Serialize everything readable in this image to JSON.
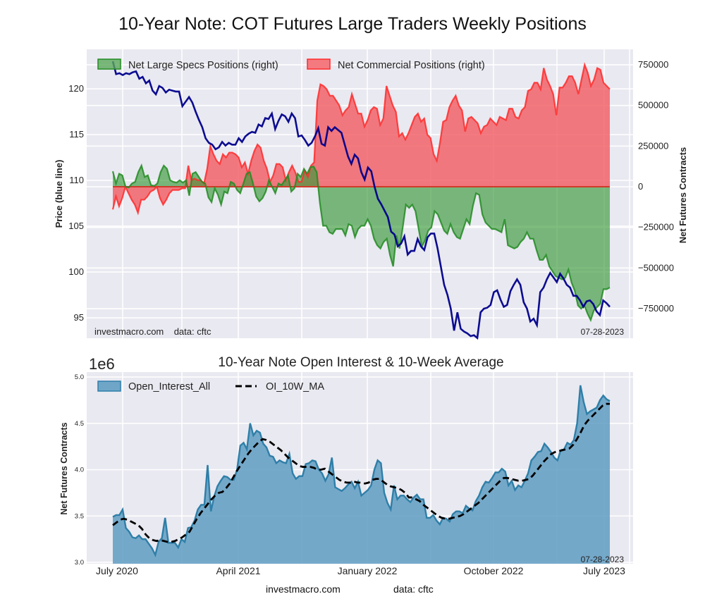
{
  "title": "10-Year Note: COT Futures Large Traders Weekly Positions",
  "footer": {
    "site": "investmacro.com",
    "source": "data: cftc"
  },
  "chart_data": [
    {
      "type": "area",
      "title": "10-Year Note: COT Futures Large Traders Weekly Positions",
      "ylabel_left": "Price (blue line)",
      "ylabel_right": "Net Futures Contracts",
      "yticks_left": [
        "95",
        "100",
        "105",
        "110",
        "115",
        "120"
      ],
      "ylim_left": [
        93,
        123.5
      ],
      "yticks_right": [
        "−750000",
        "−500000",
        "−250000",
        "0",
        "250000",
        "500000",
        "750000"
      ],
      "ylim_right": [
        -930000,
        780000
      ],
      "annotation_left": "investmacro.com    data: cftc",
      "annotation_right": "07-28-2023",
      "legend": [
        "Net Large Specs Positions (right)",
        "Net Commercial Positions (right)"
      ],
      "legend_position": "top-left",
      "grid": true,
      "x_start": "2020-06-09",
      "x_end": "2023-07-25",
      "colors": {
        "specs": "#228b22",
        "specs_fill": "#3a9a3a",
        "commercial": "#ff2a2a",
        "commercial_fill": "#f15a60",
        "price": "#00008b"
      },
      "series": [
        {
          "name": "Price",
          "axis": "left",
          "values": [
            123,
            121.6,
            121.7,
            121.5,
            121.7,
            121.6,
            121.8,
            121.9,
            121.1,
            121.3,
            120.6,
            120.9,
            119.8,
            119.4,
            120.3,
            120.1,
            119.6,
            119.9,
            119.8,
            119.7,
            119.7,
            118.1,
            118.6,
            119.1,
            118.5,
            117.5,
            116.6,
            115.8,
            114.6,
            114.1,
            113.9,
            113.4,
            113.6,
            114.2,
            113.8,
            114.1,
            113.9,
            113.9,
            114.6,
            114.2,
            114.8,
            115.1,
            115.3,
            115.2,
            116.1,
            115.9,
            116.8,
            116.7,
            117.3,
            115.6,
            116.5,
            117.2,
            117.0,
            116.4,
            117.3,
            116.8,
            114.8,
            114.9,
            114.4,
            113.8,
            114.1,
            114.8,
            115.7,
            114.0,
            113.8,
            115.8,
            115.4,
            115.8,
            115.5,
            115.2,
            113.9,
            112.6,
            111.8,
            112.8,
            112.4,
            110.9,
            110.1,
            111.4,
            111.0,
            109.3,
            108.0,
            107.4,
            106.7,
            106.0,
            104.4,
            104.1,
            102.8,
            103.1,
            103.9,
            101.9,
            102.3,
            102.3,
            103.6,
            102.8,
            102.4,
            103.8,
            104.2,
            104.2,
            102.6,
            100.6,
            98.6,
            97.5,
            96.0,
            93.6,
            95.6,
            93.8,
            93.5,
            93.3,
            93.0,
            93.1,
            92.8,
            95.6,
            96.0,
            96.1,
            96.4,
            97.8,
            98.0,
            97.0,
            96.2,
            96.4,
            97.9,
            98.6,
            99.2,
            98.6,
            96.7,
            96.0,
            94.6,
            94.9,
            94.2,
            97.8,
            98.3,
            99.2,
            99.9,
            99.4,
            98.9,
            99.8,
            99.3,
            98.6,
            98.3,
            97.4,
            97.4,
            96.9,
            96.2,
            96.8,
            96.9,
            96.5,
            95.7,
            95.3,
            96.9,
            96.6,
            96.2
          ]
        },
        {
          "name": "Net Large Specs Positions (right)",
          "axis": "right",
          "values": [
            95000,
            20000,
            80000,
            70000,
            0,
            -5000,
            20000,
            30000,
            90000,
            130000,
            60000,
            70000,
            10000,
            5000,
            20000,
            90000,
            130000,
            110000,
            40000,
            30000,
            25000,
            40000,
            25000,
            40000,
            -55000,
            80000,
            90000,
            60000,
            30000,
            20000,
            -65000,
            -95000,
            -10000,
            -50000,
            -110000,
            -30000,
            -40000,
            30000,
            20000,
            -20000,
            -40000,
            20000,
            80000,
            90000,
            20000,
            -60000,
            -90000,
            -70000,
            -30000,
            40000,
            0,
            -40000,
            20000,
            10000,
            40000,
            70000,
            -30000,
            -10000,
            80000,
            60000,
            110000,
            80000,
            120000,
            125000,
            90000,
            -100000,
            -240000,
            -240000,
            -280000,
            -290000,
            -260000,
            -260000,
            -260000,
            -300000,
            -230000,
            -240000,
            -310000,
            -260000,
            -240000,
            -240000,
            -200000,
            -240000,
            -320000,
            -360000,
            -380000,
            -340000,
            -320000,
            -420000,
            -490000,
            -300000,
            -380000,
            -250000,
            -110000,
            -130000,
            -110000,
            -150000,
            -260000,
            -370000,
            -330000,
            -270000,
            -250000,
            -150000,
            -170000,
            -220000,
            -270000,
            -290000,
            -230000,
            -280000,
            -310000,
            -320000,
            -260000,
            -200000,
            -230000,
            -120000,
            -40000,
            -50000,
            -170000,
            -220000,
            -240000,
            -260000,
            -260000,
            -270000,
            -280000,
            -200000,
            -360000,
            -370000,
            -380000,
            -370000,
            -340000,
            -320000,
            -280000,
            -320000,
            -320000,
            -390000,
            -450000,
            -450000,
            -420000,
            -490000,
            -520000,
            -550000,
            -560000,
            -570000,
            -560000,
            -510000,
            -590000,
            -640000,
            -730000,
            -750000,
            -730000,
            -780000,
            -820000,
            -760000,
            -740000,
            -720000,
            -630000,
            -630000,
            -620000
          ]
        },
        {
          "name": "Net Commercial Positions (right)",
          "axis": "right",
          "values": [
            -140000,
            -60000,
            -120000,
            -70000,
            0,
            -40000,
            -80000,
            -110000,
            -160000,
            -80000,
            -80000,
            -60000,
            -30000,
            -20000,
            0,
            -70000,
            -110000,
            -80000,
            -40000,
            -20000,
            -20000,
            -20000,
            -10000,
            -10000,
            130000,
            40000,
            50000,
            40000,
            40000,
            20000,
            110000,
            250000,
            200000,
            160000,
            140000,
            200000,
            180000,
            210000,
            210000,
            200000,
            180000,
            120000,
            150000,
            80000,
            160000,
            220000,
            260000,
            240000,
            160000,
            110000,
            30000,
            70000,
            140000,
            140000,
            120000,
            40000,
            90000,
            130000,
            90000,
            30000,
            30000,
            100000,
            60000,
            130000,
            150000,
            530000,
            630000,
            620000,
            600000,
            560000,
            560000,
            530000,
            500000,
            440000,
            470000,
            490000,
            570000,
            510000,
            450000,
            450000,
            370000,
            410000,
            470000,
            490000,
            480000,
            380000,
            420000,
            620000,
            560000,
            500000,
            460000,
            310000,
            330000,
            290000,
            330000,
            380000,
            430000,
            450000,
            400000,
            420000,
            320000,
            300000,
            200000,
            160000,
            270000,
            400000,
            410000,
            490000,
            530000,
            560000,
            500000,
            470000,
            340000,
            420000,
            430000,
            410000,
            390000,
            330000,
            370000,
            380000,
            420000,
            400000,
            380000,
            430000,
            420000,
            410000,
            480000,
            480000,
            430000,
            420000,
            470000,
            490000,
            590000,
            600000,
            640000,
            640000,
            600000,
            730000,
            660000,
            620000,
            570000,
            440000,
            610000,
            610000,
            640000,
            680000,
            680000,
            640000,
            570000,
            660000,
            750000,
            700000,
            620000,
            660000,
            730000,
            720000,
            640000,
            620000,
            600000
          ]
        }
      ]
    },
    {
      "type": "area",
      "title": "10-Year Note Open Interest & 10-Week Average",
      "ylabel": "Net Futures Contracts",
      "offset_label": "1e6",
      "yticks": [
        "3.0",
        "3.5",
        "4.0",
        "4.5",
        "5.0"
      ],
      "ylim": [
        3.0,
        5.05
      ],
      "xticks": [
        "July 2020",
        "April 2021",
        "January 2022",
        "October 2022",
        "July 2023"
      ],
      "annotation_right": "07-28-2023",
      "legend": [
        "Open_Interest_All",
        "OI_10W_MA"
      ],
      "legend_position": "top-left",
      "grid": true,
      "colors": {
        "oi": "#2e7fa8",
        "oi_fill": "#5f9cc2",
        "ma": "#000000"
      },
      "series": [
        {
          "name": "Open_Interest_All",
          "values": [
            3.49,
            3.51,
            3.51,
            3.57,
            3.37,
            3.33,
            3.27,
            3.26,
            3.29,
            3.25,
            3.25,
            3.2,
            3.15,
            3.08,
            3.22,
            3.26,
            3.48,
            3.21,
            3.21,
            3.21,
            3.16,
            3.25,
            3.22,
            3.37,
            3.38,
            3.45,
            3.57,
            3.62,
            3.62,
            4.05,
            3.55,
            3.71,
            3.82,
            3.88,
            3.93,
            3.92,
            3.89,
            3.89,
            4.0,
            4.26,
            4.29,
            4.22,
            4.5,
            4.37,
            4.42,
            4.4,
            4.28,
            4.24,
            4.15,
            4.14,
            4.07,
            4.1,
            4.08,
            4.07,
            4.17,
            3.96,
            3.9,
            3.93,
            3.93,
            4.06,
            4.07,
            4.1,
            4.09,
            4.0,
            3.96,
            3.88,
            3.95,
            4.13,
            3.81,
            3.79,
            3.77,
            3.8,
            3.84,
            3.87,
            3.8,
            3.87,
            3.72,
            3.75,
            3.78,
            3.83,
            4.0,
            4.1,
            4.07,
            3.75,
            3.64,
            3.57,
            3.83,
            3.68,
            3.72,
            3.72,
            3.68,
            3.65,
            3.7,
            3.73,
            3.68,
            3.68,
            3.48,
            3.48,
            3.51,
            3.45,
            3.41,
            3.48,
            3.47,
            3.44,
            3.52,
            3.55,
            3.55,
            3.53,
            3.61,
            3.58,
            3.56,
            3.66,
            3.72,
            3.81,
            3.87,
            3.86,
            3.91,
            3.97,
            3.97,
            4.01,
            3.98,
            3.83,
            3.88,
            3.78,
            3.83,
            3.81,
            3.88,
            3.96,
            4.1,
            4.14,
            4.19,
            4.2,
            4.28,
            4.24,
            4.19,
            4.13,
            4.1,
            4.21,
            4.22,
            4.29,
            4.27,
            4.32,
            4.5,
            4.91,
            4.73,
            4.6,
            4.63,
            4.65,
            4.67,
            4.75,
            4.8,
            4.76,
            4.74
          ]
        },
        {
          "name": "OI_10W_MA",
          "values": [
            3.4,
            3.43,
            3.46,
            3.47,
            3.46,
            3.44,
            3.42,
            3.4,
            3.36,
            3.3,
            3.26,
            3.24,
            3.23,
            3.24,
            3.23,
            3.22,
            3.22,
            3.23,
            3.25,
            3.27,
            3.3,
            3.33,
            3.4,
            3.47,
            3.53,
            3.58,
            3.63,
            3.68,
            3.72,
            3.75,
            3.76,
            3.8,
            3.85,
            3.92,
            3.99,
            4.05,
            4.11,
            4.17,
            4.22,
            4.26,
            4.3,
            4.33,
            4.32,
            4.3,
            4.27,
            4.24,
            4.21,
            4.17,
            4.13,
            4.1,
            4.07,
            4.04,
            4.03,
            4.03,
            4.03,
            4.02,
            4.0,
            4.0,
            4.01,
            3.98,
            3.95,
            3.92,
            3.89,
            3.87,
            3.86,
            3.86,
            3.87,
            3.86,
            3.86,
            3.85,
            3.86,
            3.89,
            3.9,
            3.9,
            3.87,
            3.84,
            3.82,
            3.81,
            3.8,
            3.78,
            3.75,
            3.7,
            3.7,
            3.68,
            3.66,
            3.62,
            3.59,
            3.56,
            3.53,
            3.5,
            3.48,
            3.47,
            3.47,
            3.48,
            3.49,
            3.5,
            3.52,
            3.55,
            3.58,
            3.61,
            3.64,
            3.68,
            3.72,
            3.76,
            3.8,
            3.84,
            3.88,
            3.91,
            3.91,
            3.9,
            3.89,
            3.88,
            3.88,
            3.89,
            3.9,
            3.94,
            3.99,
            4.04,
            4.09,
            4.13,
            4.17,
            4.19,
            4.2,
            4.21,
            4.22,
            4.23,
            4.27,
            4.33,
            4.4,
            4.48,
            4.53,
            4.57,
            4.61,
            4.65,
            4.69,
            4.71,
            4.71
          ]
        }
      ]
    }
  ]
}
